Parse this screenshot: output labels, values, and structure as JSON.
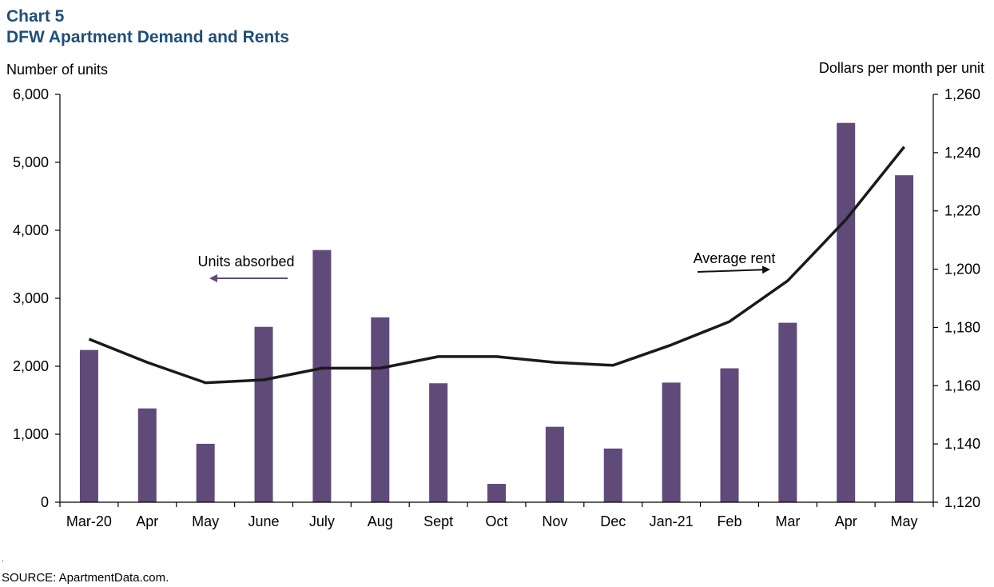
{
  "chart_label": "Chart 5",
  "title": "DFW Apartment Demand and Rents",
  "source": "SOURCE:  ApartmentData.com.",
  "footnote_mark": ".",
  "colors": {
    "bars": "#5f4a7a",
    "line": "#1a1a1a",
    "title": "#1f4e79",
    "arrow": "#5f4a7a"
  },
  "chart_data": {
    "type": "bar",
    "categories": [
      "Mar-20",
      "Apr",
      "May",
      "June",
      "July",
      "Aug",
      "Sept",
      "Oct",
      "Nov",
      "Dec",
      "Jan-21",
      "Feb",
      "Mar",
      "Apr",
      "May"
    ],
    "series": [
      {
        "name": "Units absorbed",
        "type": "bar",
        "axis": "left",
        "values": [
          2240,
          1380,
          860,
          2580,
          3710,
          2720,
          1750,
          270,
          1110,
          790,
          1760,
          1970,
          2640,
          5580,
          4810
        ]
      },
      {
        "name": "Average rent",
        "type": "line",
        "axis": "right",
        "values": [
          1176,
          1168,
          1161,
          1162,
          1166,
          1166,
          1170,
          1170,
          1168,
          1167,
          1174,
          1182,
          1196,
          1217,
          1242
        ]
      }
    ],
    "ylabel": "Number  of units",
    "ylim": [
      0,
      6000
    ],
    "yticks": [
      "0",
      "1,000",
      "2,000",
      "3,000",
      "4,000",
      "5,000",
      "6,000"
    ],
    "y2label": "Dollars per month  per unit",
    "y2lim": [
      1120,
      1260
    ],
    "y2ticks": [
      "1,120",
      "1,140",
      "1,160",
      "1,180",
      "1,200",
      "1,220",
      "1,240",
      "1,260"
    ],
    "annotations": [
      {
        "text": "Units absorbed",
        "arrow": "left"
      },
      {
        "text": "Average rent",
        "arrow": "right"
      }
    ],
    "grid": false,
    "legend": "none"
  }
}
